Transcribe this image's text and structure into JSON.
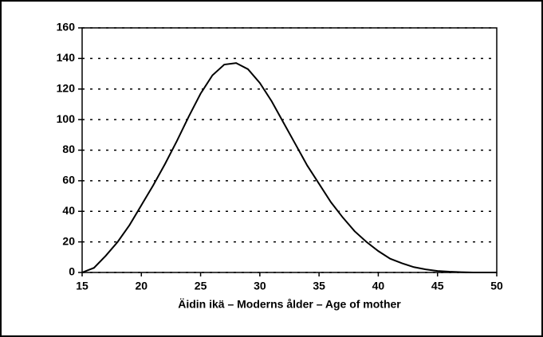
{
  "chart_data": {
    "type": "line",
    "xlabel": "Äidin ikä – Moderns ålder – Age of mother",
    "x": [
      15,
      16,
      17,
      18,
      19,
      20,
      21,
      22,
      23,
      24,
      25,
      26,
      27,
      28,
      29,
      30,
      31,
      32,
      33,
      34,
      35,
      36,
      37,
      38,
      39,
      40,
      41,
      42,
      43,
      44,
      45,
      46,
      47,
      48,
      49,
      50
    ],
    "series": [
      {
        "name": null,
        "color": "#000000",
        "values": [
          0,
          3,
          11,
          20,
          31,
          44,
          57,
          71,
          86,
          102,
          117,
          129,
          136,
          137,
          133,
          124,
          112,
          98,
          84,
          70,
          58,
          46,
          36,
          27,
          20,
          14,
          9,
          6,
          3.5,
          2,
          1,
          0.5,
          0.2,
          0,
          0,
          0
        ]
      }
    ],
    "xlim": [
      15,
      50
    ],
    "xticks": [
      15,
      20,
      25,
      30,
      35,
      40,
      45,
      50
    ],
    "ylim": [
      0,
      160
    ],
    "yticks": [
      0,
      20,
      40,
      60,
      80,
      100,
      120,
      140,
      160
    ],
    "grid": true
  }
}
